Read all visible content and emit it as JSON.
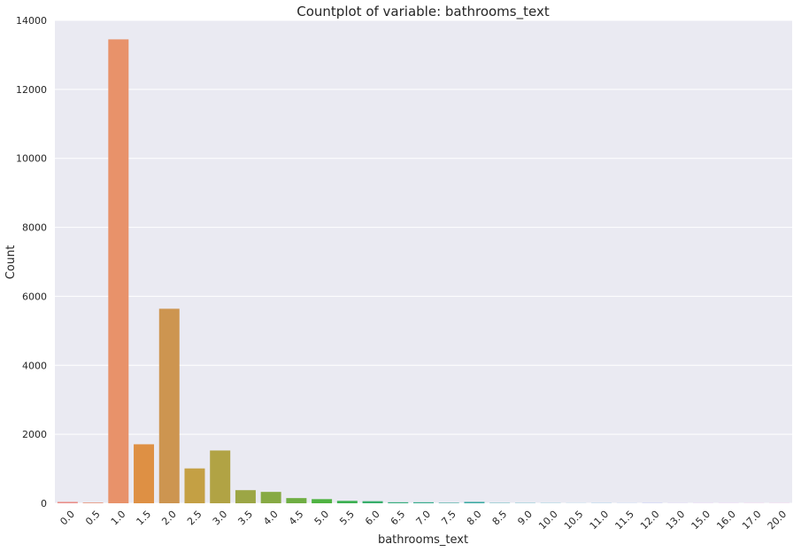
{
  "chart_data": {
    "type": "bar",
    "title": "Countplot of variable: bathrooms_text",
    "xlabel": "bathrooms_text",
    "ylabel": "Count",
    "ylim": [
      0,
      14000
    ],
    "yticks": [
      0,
      2000,
      4000,
      6000,
      8000,
      10000,
      12000,
      14000
    ],
    "grid": true,
    "categories": [
      "0.0",
      "0.5",
      "1.0",
      "1.5",
      "2.0",
      "2.5",
      "3.0",
      "3.5",
      "4.0",
      "4.5",
      "5.0",
      "5.5",
      "6.0",
      "6.5",
      "7.0",
      "7.5",
      "8.0",
      "8.5",
      "9.0",
      "10.0",
      "10.5",
      "11.0",
      "11.5",
      "12.0",
      "13.0",
      "15.0",
      "16.0",
      "17.0",
      "20.0"
    ],
    "values": [
      40,
      20,
      13450,
      1710,
      5640,
      1010,
      1530,
      380,
      330,
      150,
      120,
      70,
      60,
      30,
      30,
      15,
      40,
      10,
      8,
      6,
      3,
      5,
      3,
      5,
      3,
      3,
      3,
      3,
      3
    ],
    "colors": [
      "#ea8e88",
      "#e89075",
      "#e8926a",
      "#de9044",
      "#cd9550",
      "#c4a044",
      "#b1a344",
      "#9ca645",
      "#87aa44",
      "#6fae43",
      "#4fb342",
      "#3cb052",
      "#38ae6b",
      "#37ad7d",
      "#38ab8d",
      "#39aa98",
      "#3aa9a2",
      "#3ba8ad",
      "#3ca6b6",
      "#3ea5c0",
      "#3fa3cd",
      "#449fd8",
      "#5896e8",
      "#7c8ef0",
      "#a383f0",
      "#c078ef",
      "#db6ee8",
      "#e96bd2",
      "#ea6ec0"
    ]
  }
}
